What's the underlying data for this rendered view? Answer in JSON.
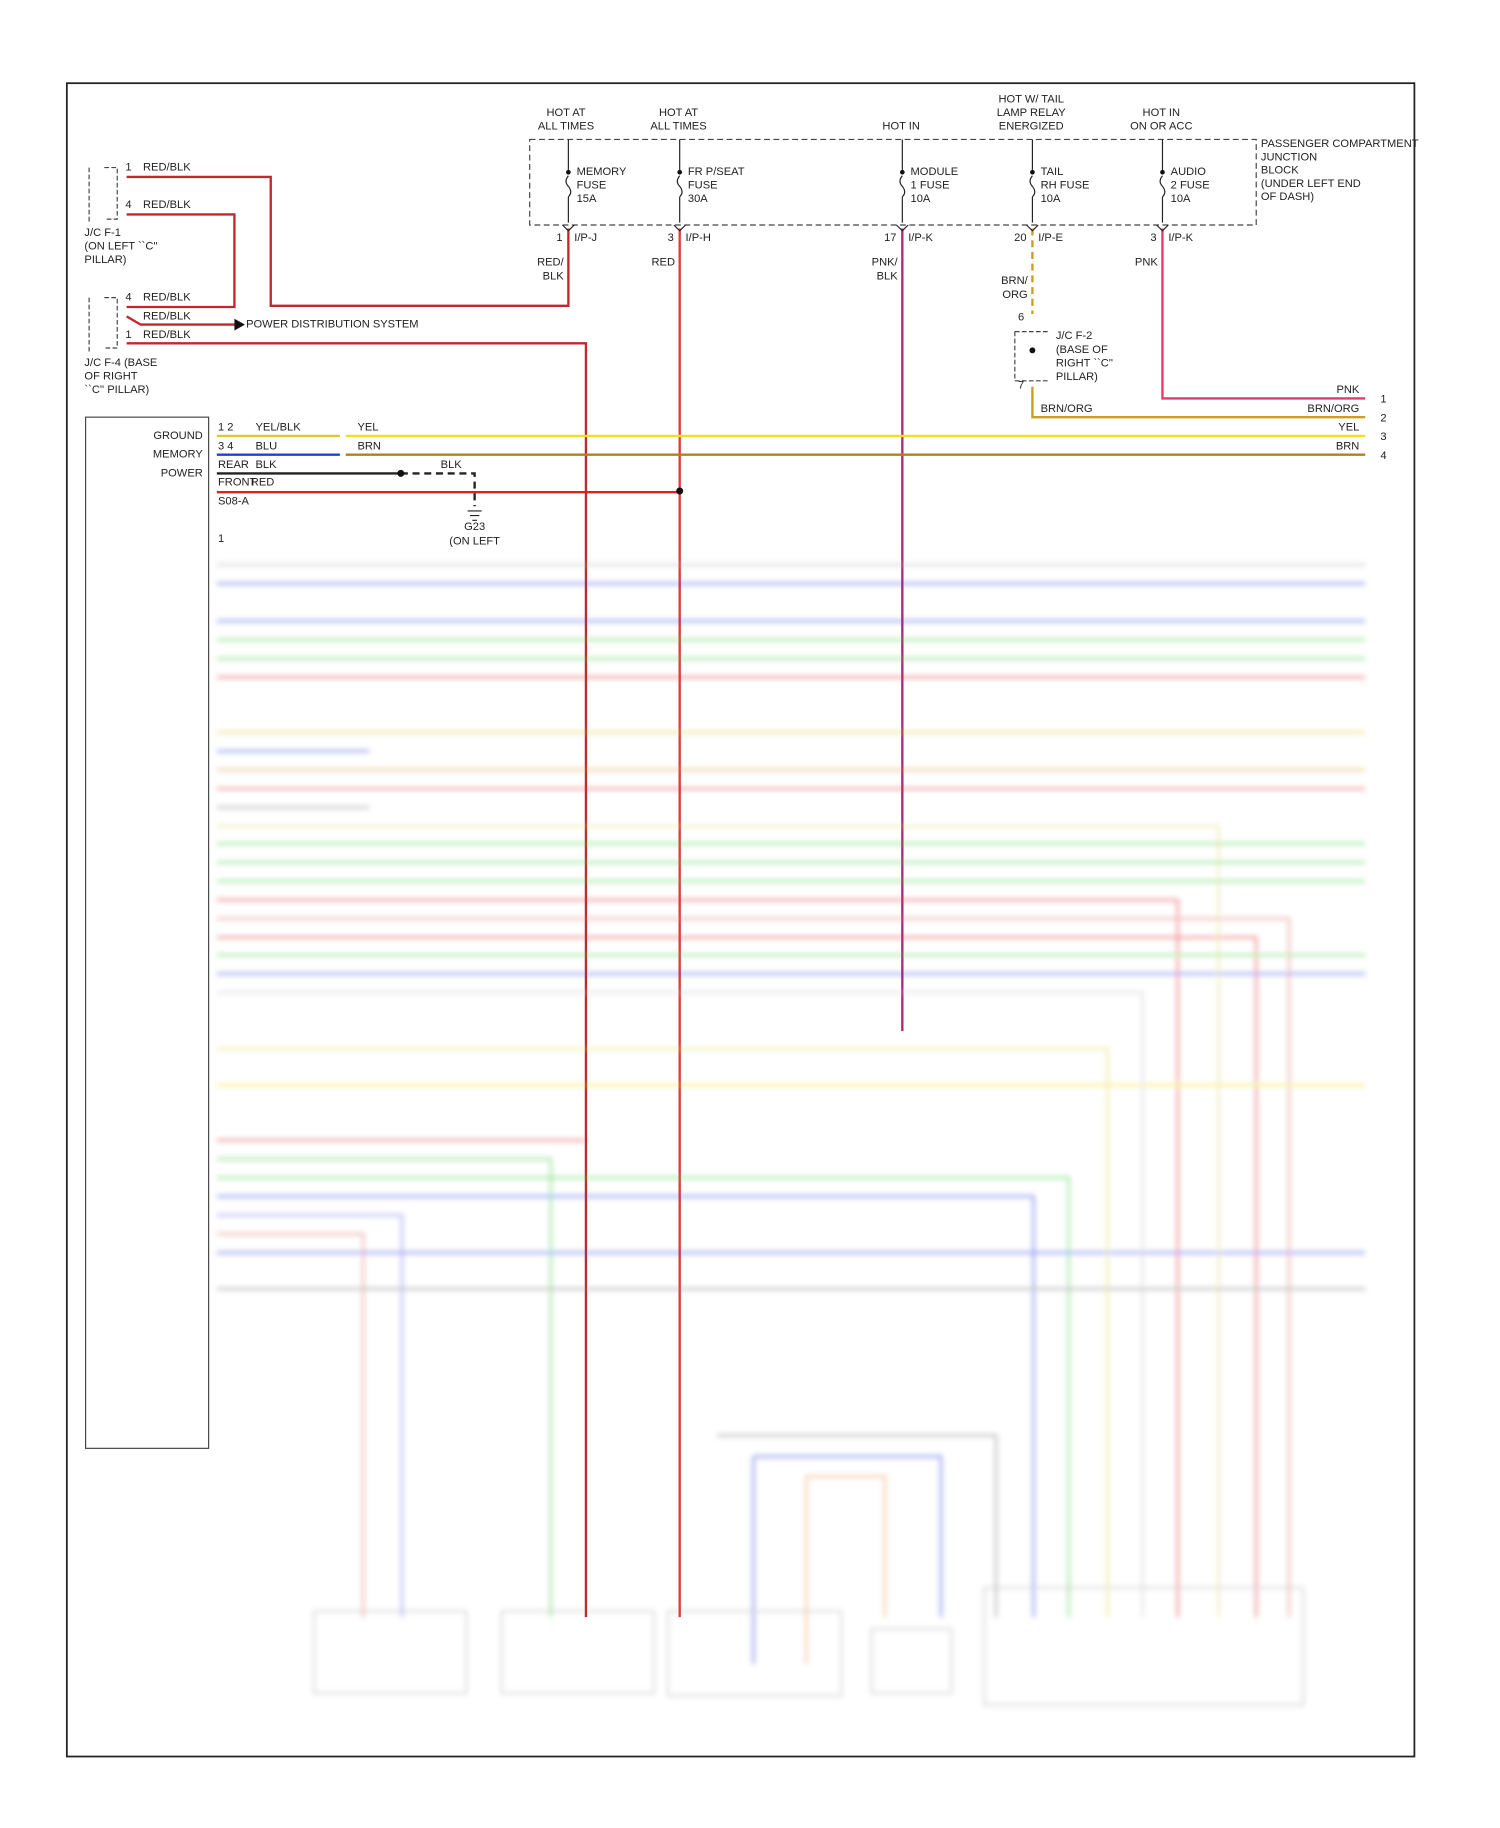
{
  "headers": [
    [
      "HOT AT",
      "ALL TIMES"
    ],
    [
      "HOT AT",
      "ALL TIMES"
    ],
    [
      "HOT IN"
    ],
    [
      "HOT W/ TAIL",
      "LAMP RELAY",
      "ENERGIZED"
    ],
    [
      "HOT IN",
      "ON OR ACC"
    ]
  ],
  "junction_block": [
    "PASSENGER COMPARTMENT",
    "JUNCTION",
    "BLOCK",
    "(UNDER LEFT END",
    "OF DASH)"
  ],
  "fuses": [
    {
      "name": [
        "MEMORY",
        "FUSE",
        "15A"
      ],
      "pin": "1",
      "connector": "I/P-J",
      "wire": [
        "RED/",
        "BLK"
      ]
    },
    {
      "name": [
        "FR P/SEAT",
        "FUSE",
        "30A"
      ],
      "pin": "3",
      "connector": "I/P-H",
      "wire": [
        "RED"
      ]
    },
    {
      "name": [
        "MODULE",
        "1 FUSE",
        "10A"
      ],
      "pin": "17",
      "connector": "I/P-K",
      "wire": [
        "PNK/",
        "BLK"
      ]
    },
    {
      "name": [
        "TAIL",
        "RH FUSE",
        "10A"
      ],
      "pin": "20",
      "connector": "I/P-E",
      "wire": [
        "BRN/",
        "ORG"
      ]
    },
    {
      "name": [
        "AUDIO",
        "2 FUSE",
        "10A"
      ],
      "pin": "3",
      "connector": "I/P-K",
      "wire": [
        "PNK"
      ]
    }
  ],
  "jc_f1": {
    "pins": [
      "1",
      "4"
    ],
    "wires": [
      "RED/BLK",
      "RED/BLK"
    ],
    "caption": [
      "J/C F-1",
      "(ON LEFT ``C''",
      "PILLAR)"
    ]
  },
  "jc_f4": {
    "pins": [
      "4",
      "1"
    ],
    "wires": [
      "RED/BLK",
      "RED/BLK",
      "RED/BLK"
    ],
    "caption": [
      "J/C F-4 (BASE",
      "OF RIGHT",
      "``C'' PILLAR)"
    ],
    "destination": "POWER DISTRIBUTION SYSTEM"
  },
  "jc_f2": {
    "pins": [
      "6",
      "7"
    ],
    "caption": [
      "J/C F-2",
      "(BASE OF",
      "RIGHT ``C''",
      "PILLAR)"
    ],
    "wire": "BRN/ORG"
  },
  "outputs": [
    {
      "wire": "PNK",
      "pin": "1"
    },
    {
      "wire": "BRN/ORG",
      "pin": "2"
    },
    {
      "wire": "YEL",
      "pin": "3"
    },
    {
      "wire": "BRN",
      "pin": "4"
    }
  ],
  "module": {
    "terminals": [
      "GROUND",
      "MEMORY",
      "POWER"
    ],
    "pins": [
      "1 2",
      "3 4",
      "1"
    ],
    "wires": [
      "YEL/BLK",
      "BLU",
      "REAR",
      "BLK",
      "FRONT",
      "RED",
      "S08-A"
    ],
    "splices": [
      "YEL",
      "BRN",
      "BLK"
    ],
    "ground": [
      "G23",
      "(ON LEFT"
    ]
  }
}
